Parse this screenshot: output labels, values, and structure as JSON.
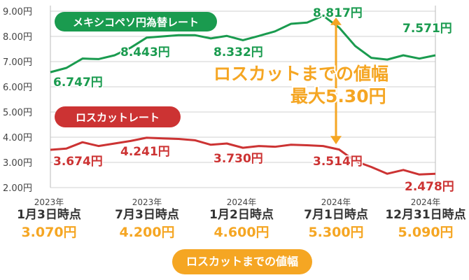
{
  "chart_data": {
    "type": "line",
    "ylim": [
      2.0,
      9.0
    ],
    "yticks": [
      "2.00円",
      "3.00円",
      "4.00円",
      "5.00円",
      "6.00円",
      "7.00円",
      "8.00円",
      "9.00円"
    ],
    "series": [
      {
        "name": "メキシコペソ円為替レート",
        "color": "#1a9b4f",
        "values": [
          6.58,
          6.75,
          7.12,
          7.1,
          7.25,
          7.55,
          7.95,
          8.0,
          8.05,
          8.05,
          7.92,
          8.02,
          7.85,
          8.02,
          8.2,
          8.5,
          8.55,
          8.82,
          8.35,
          7.62,
          7.15,
          7.08,
          7.25,
          7.12,
          7.25
        ]
      },
      {
        "name": "ロスカットレート",
        "color": "#cc3333",
        "values": [
          3.5,
          3.55,
          3.8,
          3.65,
          3.75,
          3.85,
          3.98,
          3.95,
          3.93,
          3.88,
          3.7,
          3.75,
          3.58,
          3.65,
          3.62,
          3.7,
          3.68,
          3.65,
          3.51,
          3.05,
          2.82,
          2.55,
          2.7,
          2.52,
          2.55
        ]
      }
    ],
    "value_labels": {
      "green": [
        "6.747円",
        "8.443円",
        "8.332円",
        "8.817円",
        "7.571円"
      ],
      "red": [
        "3.674円",
        "4.241円",
        "3.730円",
        "3.514円",
        "2.478円"
      ]
    },
    "annotation": {
      "line1": "ロスカットまでの値幅",
      "line2": "最大5.30円"
    }
  },
  "dates": [
    {
      "year": "2023年",
      "day": "1月3日時点",
      "width": "3.070円"
    },
    {
      "year": "2023年",
      "day": "7月3日時点",
      "width": "4.200円"
    },
    {
      "year": "2024年",
      "day": "1月2日時点",
      "width": "4.600円"
    },
    {
      "year": "2024年",
      "day": "7月1日時点",
      "width": "5.300円"
    },
    {
      "year": "2024年",
      "day": "12月31日時点",
      "width": "5.090円"
    }
  ],
  "bottom_pill": "ロスカットまでの値幅",
  "colors": {
    "green": "#1a9b4f",
    "red": "#cc3333",
    "orange": "#f5a623",
    "grid": "#d0d0d0"
  }
}
